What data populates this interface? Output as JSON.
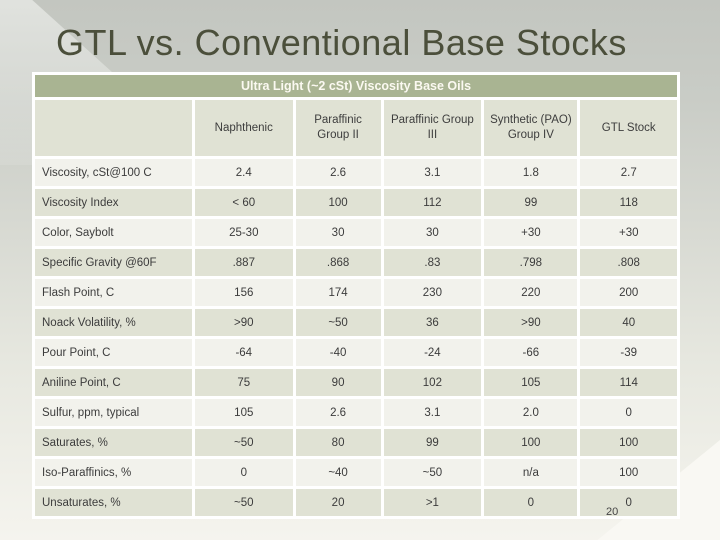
{
  "slide": {
    "title": "GTL vs. Conventional Base Stocks",
    "page_number": "20"
  },
  "table": {
    "banner": "Ultra Light (~2 cSt) Viscosity Base Oils",
    "columns": [
      "",
      "Naphthenic",
      "Paraffinic Group II",
      "Paraffinic Group III",
      "Synthetic (PAO) Group IV",
      "GTL Stock"
    ],
    "rows": [
      {
        "label": "Viscosity, cSt@100 C",
        "values": [
          "2.4",
          "2.6",
          "3.1",
          "1.8",
          "2.7"
        ]
      },
      {
        "label": "Viscosity Index",
        "values": [
          "< 60",
          "100",
          "112",
          "99",
          "118"
        ]
      },
      {
        "label": "Color, Saybolt",
        "values": [
          "25-30",
          "30",
          "30",
          "+30",
          "+30"
        ]
      },
      {
        "label": "Specific Gravity @60F",
        "values": [
          ".887",
          ".868",
          ".83",
          ".798",
          ".808"
        ]
      },
      {
        "label": "Flash Point, C",
        "values": [
          "156",
          "174",
          "230",
          "220",
          "200"
        ]
      },
      {
        "label": "Noack Volatility, %",
        "values": [
          ">90",
          "~50",
          "36",
          ">90",
          "40"
        ]
      },
      {
        "label": "Pour Point, C",
        "values": [
          "-64",
          "-40",
          "-24",
          "-66",
          "-39"
        ]
      },
      {
        "label": "Aniline Point, C",
        "values": [
          "75",
          "90",
          "102",
          "105",
          "114"
        ]
      },
      {
        "label": "Sulfur, ppm, typical",
        "values": [
          "105",
          "2.6",
          "3.1",
          "2.0",
          "0"
        ]
      },
      {
        "label": "Saturates, %",
        "values": [
          "~50",
          "80",
          "99",
          "100",
          "100"
        ]
      },
      {
        "label": "Iso-Paraffinics, %",
        "values": [
          "0",
          "~40",
          "~50",
          "n/a",
          "100"
        ]
      },
      {
        "label": "Unsaturates, %",
        "values": [
          "~50",
          "20",
          ">1",
          "0",
          "0"
        ]
      }
    ]
  },
  "colors": {
    "banner_green": "#a9b492",
    "row_shade": "#e0e2d4",
    "row_light": "#f2f2ec",
    "title_olive": "#4b4f3b",
    "cell_text": "#3c3c3c"
  }
}
